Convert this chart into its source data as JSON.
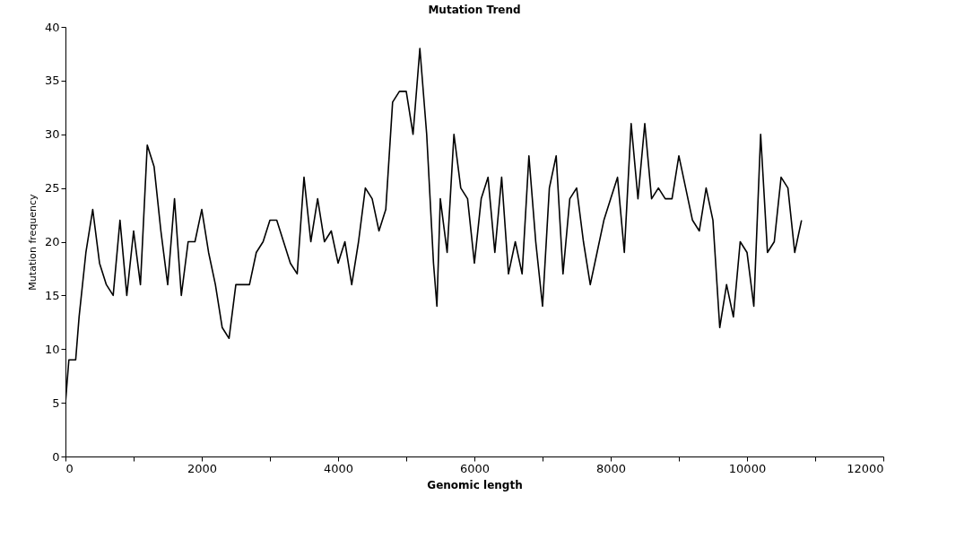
{
  "chart_data": {
    "type": "line",
    "title": "Mutation Trend",
    "xlabel": "Genomic length",
    "ylabel": "Mutation frequency",
    "x": [
      0,
      50,
      150,
      200,
      300,
      400,
      500,
      600,
      700,
      800,
      900,
      1000,
      1100,
      1200,
      1300,
      1400,
      1500,
      1600,
      1700,
      1800,
      1900,
      2000,
      2100,
      2200,
      2300,
      2400,
      2500,
      2700,
      2800,
      2900,
      3000,
      3100,
      3300,
      3400,
      3500,
      3600,
      3700,
      3800,
      3900,
      4000,
      4100,
      4200,
      4300,
      4400,
      4500,
      4600,
      4700,
      4800,
      4900,
      5000,
      5100,
      5200,
      5300,
      5400,
      5450,
      5500,
      5600,
      5700,
      5800,
      5900,
      6000,
      6100,
      6200,
      6300,
      6400,
      6500,
      6600,
      6700,
      6800,
      6900,
      7000,
      7100,
      7200,
      7300,
      7400,
      7500,
      7600,
      7700,
      7800,
      7900,
      8000,
      8100,
      8200,
      8300,
      8400,
      8500,
      8600,
      8700,
      8800,
      8900,
      9000,
      9100,
      9200,
      9300,
      9400,
      9500,
      9600,
      9700,
      9800,
      9900,
      10000,
      10100,
      10200,
      10300,
      10400,
      10500,
      10600,
      10700,
      10800
    ],
    "series": [
      {
        "color": "#000000",
        "values": [
          5,
          9,
          9,
          13,
          19,
          23,
          18,
          16,
          15,
          22,
          15,
          21,
          16,
          29,
          27,
          21,
          16,
          24,
          15,
          20,
          20,
          23,
          19,
          16,
          12,
          11,
          16,
          16,
          19,
          20,
          22,
          22,
          18,
          17,
          26,
          20,
          24,
          20,
          21,
          18,
          20,
          16,
          20,
          25,
          24,
          21,
          23,
          33,
          34,
          34,
          30,
          38,
          30,
          18,
          14,
          24,
          19,
          30,
          25,
          24,
          18,
          24,
          26,
          19,
          26,
          17,
          20,
          17,
          28,
          20,
          14,
          25,
          28,
          17,
          24,
          25,
          20,
          16,
          19,
          22,
          24,
          26,
          19,
          31,
          24,
          31,
          24,
          25,
          24,
          24,
          28,
          25,
          22,
          21,
          25,
          22,
          12,
          16,
          13,
          20,
          19,
          14,
          30,
          19,
          20,
          26,
          25,
          19,
          22
        ]
      }
    ],
    "xlim": [
      0,
      12000
    ],
    "xticks": [
      0,
      {
        "value": 1000,
        "label": null
      },
      2000,
      {
        "value": 3000,
        "label": null
      },
      4000,
      {
        "value": 5000,
        "label": null
      },
      6000,
      {
        "value": 7000,
        "label": null
      },
      8000,
      {
        "value": 9000,
        "label": null
      },
      10000,
      {
        "value": 11000,
        "label": null
      },
      12000
    ],
    "ylim": [
      0,
      40
    ],
    "yticks": [
      0,
      5,
      10,
      15,
      20,
      25,
      30,
      35,
      40
    ],
    "grid": false,
    "legend": false,
    "line_style": "solid",
    "marker": "none"
  }
}
